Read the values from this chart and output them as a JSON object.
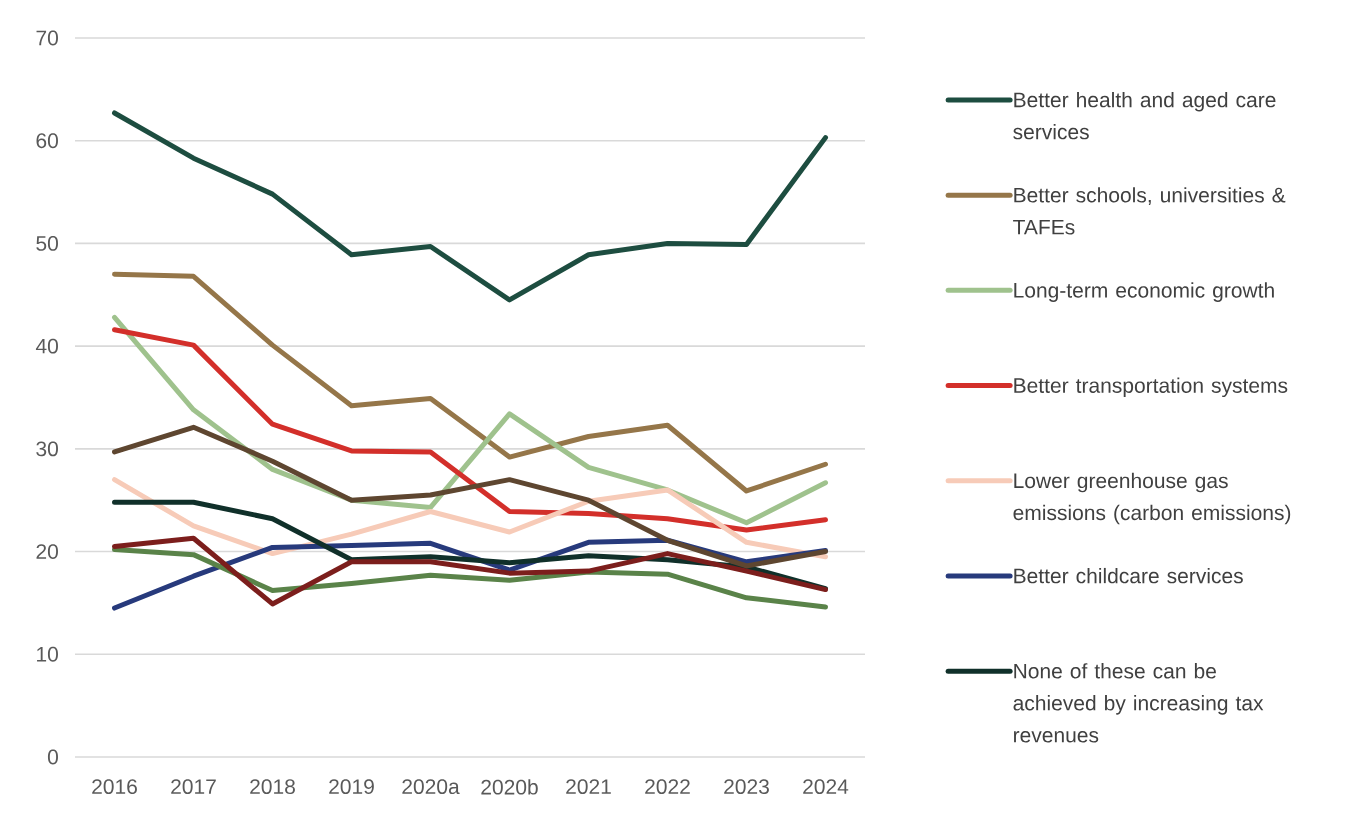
{
  "chart_data": {
    "type": "line",
    "categories": [
      "2016",
      "2017",
      "2018",
      "2019",
      "2020a",
      "2020b",
      "2021",
      "2022",
      "2023",
      "2024"
    ],
    "ylim": [
      0,
      70
    ],
    "yticks": [
      0,
      10,
      20,
      30,
      40,
      50,
      60,
      70
    ],
    "grid": "y",
    "legend": "right",
    "series": [
      {
        "name": "Better health and aged care services",
        "color": "#1d4d40",
        "values": [
          62.7,
          58.3,
          54.8,
          48.9,
          49.7,
          44.5,
          48.9,
          50.0,
          49.9,
          60.3
        ]
      },
      {
        "name": "Better schools, universities & TAFEs",
        "color": "#957649",
        "values": [
          47.0,
          46.8,
          40.1,
          34.2,
          34.9,
          29.2,
          31.2,
          32.3,
          25.9,
          28.5
        ]
      },
      {
        "name": "Long-term economic growth",
        "color": "#9fc28d",
        "values": [
          42.8,
          33.8,
          28.0,
          25.0,
          24.3,
          33.4,
          28.2,
          26.0,
          22.8,
          26.7
        ]
      },
      {
        "name": "Better transportation systems",
        "color": "#d32f2a",
        "values": [
          41.6,
          40.1,
          32.4,
          29.8,
          29.7,
          23.9,
          23.7,
          23.2,
          22.1,
          23.1
        ]
      },
      {
        "name": "Lower greenhouse gas emissions (carbon emissions)",
        "color": "#f7cbb8",
        "values": [
          27.0,
          22.5,
          19.8,
          21.7,
          23.9,
          21.9,
          24.9,
          26.0,
          20.9,
          19.5
        ]
      },
      {
        "name": "Better childcare services",
        "color": "#273a7c",
        "values": [
          14.5,
          17.6,
          20.4,
          20.6,
          20.8,
          18.2,
          20.9,
          21.1,
          19.0,
          20.1
        ]
      },
      {
        "name": "None of these can be achieved by increasing tax revenues",
        "color": "#10302a",
        "values": [
          24.8,
          24.8,
          23.2,
          19.2,
          19.5,
          18.9,
          19.6,
          19.2,
          18.5,
          16.4
        ]
      },
      {
        "color": "#5e4630",
        "values": [
          29.7,
          32.1,
          28.8,
          25.0,
          25.5,
          27.0,
          25.0,
          21.1,
          18.6,
          20.0
        ]
      },
      {
        "color": "#5a8349",
        "values": [
          20.2,
          19.7,
          16.2,
          16.9,
          17.7,
          17.2,
          18.0,
          17.8,
          15.5,
          14.6
        ]
      },
      {
        "color": "#7c1e1c",
        "values": [
          20.5,
          21.3,
          14.9,
          19.0,
          19.0,
          17.9,
          18.1,
          19.8,
          18.1,
          16.3
        ]
      }
    ]
  }
}
